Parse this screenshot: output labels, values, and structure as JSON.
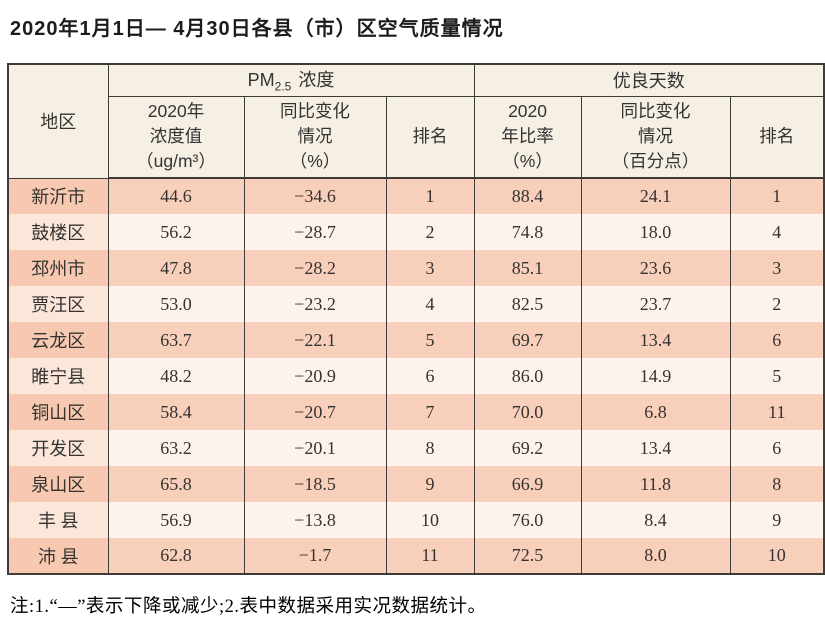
{
  "title": "2020年1月1日— 4月30日各县（市）区空气质量情况",
  "table": {
    "region_header": "地区",
    "group1": {
      "prefix": "PM",
      "sub": "2.5",
      "suffix": "浓度"
    },
    "group2": "优良天数",
    "sub_headers": {
      "pm_value": "2020年\n浓度值\n（ug/m³）",
      "pm_change": "同比变化\n情况\n（%）",
      "pm_rank": "排名",
      "good_ratio": "2020\n年比率\n（%）",
      "good_change": "同比变化\n情况\n（百分点）",
      "good_rank": "排名"
    },
    "rows": [
      {
        "region": "新沂市",
        "pm_value": "44.6",
        "pm_change": "−34.6",
        "pm_rank": "1",
        "good_ratio": "88.4",
        "good_change": "24.1",
        "good_rank": "1"
      },
      {
        "region": "鼓楼区",
        "pm_value": "56.2",
        "pm_change": "−28.7",
        "pm_rank": "2",
        "good_ratio": "74.8",
        "good_change": "18.0",
        "good_rank": "4"
      },
      {
        "region": "邳州市",
        "pm_value": "47.8",
        "pm_change": "−28.2",
        "pm_rank": "3",
        "good_ratio": "85.1",
        "good_change": "23.6",
        "good_rank": "3"
      },
      {
        "region": "贾汪区",
        "pm_value": "53.0",
        "pm_change": "−23.2",
        "pm_rank": "4",
        "good_ratio": "82.5",
        "good_change": "23.7",
        "good_rank": "2"
      },
      {
        "region": "云龙区",
        "pm_value": "63.7",
        "pm_change": "−22.1",
        "pm_rank": "5",
        "good_ratio": "69.7",
        "good_change": "13.4",
        "good_rank": "6"
      },
      {
        "region": "睢宁县",
        "pm_value": "48.2",
        "pm_change": "−20.9",
        "pm_rank": "6",
        "good_ratio": "86.0",
        "good_change": "14.9",
        "good_rank": "5"
      },
      {
        "region": "铜山区",
        "pm_value": "58.4",
        "pm_change": "−20.7",
        "pm_rank": "7",
        "good_ratio": "70.0",
        "good_change": "6.8",
        "good_rank": "11"
      },
      {
        "region": "开发区",
        "pm_value": "63.2",
        "pm_change": "−20.1",
        "pm_rank": "8",
        "good_ratio": "69.2",
        "good_change": "13.4",
        "good_rank": "6"
      },
      {
        "region": "泉山区",
        "pm_value": "65.8",
        "pm_change": "−18.5",
        "pm_rank": "9",
        "good_ratio": "66.9",
        "good_change": "11.8",
        "good_rank": "8"
      },
      {
        "region": "丰 县",
        "pm_value": "56.9",
        "pm_change": "−13.8",
        "pm_rank": "10",
        "good_ratio": "76.0",
        "good_change": "8.4",
        "good_rank": "9"
      },
      {
        "region": "沛 县",
        "pm_value": "62.8",
        "pm_change": "−1.7",
        "pm_rank": "11",
        "good_ratio": "72.5",
        "good_change": "8.0",
        "good_rank": "10"
      }
    ]
  },
  "note": "注:1.“—”表示下降或减少;2.表中数据采用实况数据统计。",
  "colors": {
    "row_salmon": "#f8cfba",
    "row_pale": "#fdf3ed",
    "region_salmon": "#f7c9b1",
    "region_pale": "#fbe7da",
    "header_bg": "#f6efe4",
    "border": "#3f3b37",
    "text": "#353331",
    "title_color": "#1c1c1c"
  }
}
